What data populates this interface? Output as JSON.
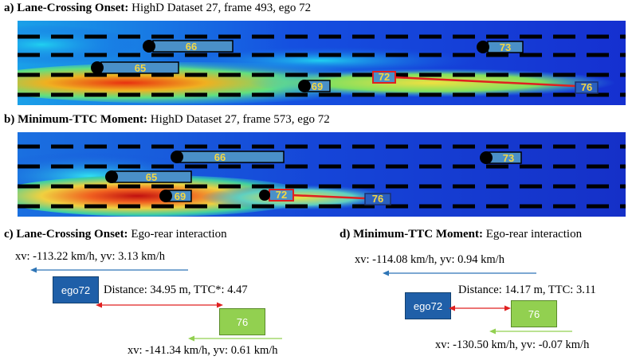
{
  "panel_a": {
    "letter": "a)",
    "bold": "Lane-Crossing Onset:",
    "rest": " HighD Dataset 27, frame 493, ego 72",
    "vehicles": [
      "66",
      "73",
      "65",
      "69",
      "72",
      "76"
    ]
  },
  "panel_b": {
    "letter": "b)",
    "bold": "Minimum-TTC Moment:",
    "rest": " HighD Dataset 27, frame 573, ego 72",
    "vehicles": [
      "66",
      "73",
      "65",
      "69",
      "72",
      "76"
    ]
  },
  "panel_c": {
    "letter": "c)",
    "bold": "Lane-Crossing Onset:",
    "rest": " Ego-rear interaction",
    "ego_velocity": "xv: -113.22 km/h, yv: 3.13 km/h",
    "ego_label": "ego72",
    "distance": "Distance: 34.95 m, TTC*: 4.47",
    "rear_label": "76",
    "rear_velocity": "xv: -141.34 km/h, yv: 0.61 km/h"
  },
  "panel_d": {
    "letter": "d)",
    "bold": "Minimum-TTC Moment:",
    "rest": " Ego-rear interaction",
    "ego_velocity": "xv: -114.08 km/h, yv: 0.94 km/h",
    "ego_label": "ego72",
    "distance": "Distance: 14.17 m, TTC: 3.11",
    "rear_label": "76",
    "rear_velocity": "xv: -130.50 km/h, yv: -0.07 km/h"
  },
  "colors": {
    "ego_box": "#1f5fa8",
    "rear_box": "#92d050",
    "ego_arrow": "#2e75b6",
    "rear_arrow": "#92d050",
    "distance_arrow": "#e02020",
    "vehicle_box": "#4a90c8",
    "ego_vehicle_box": "#e02020",
    "label_text": "#f5d742"
  }
}
